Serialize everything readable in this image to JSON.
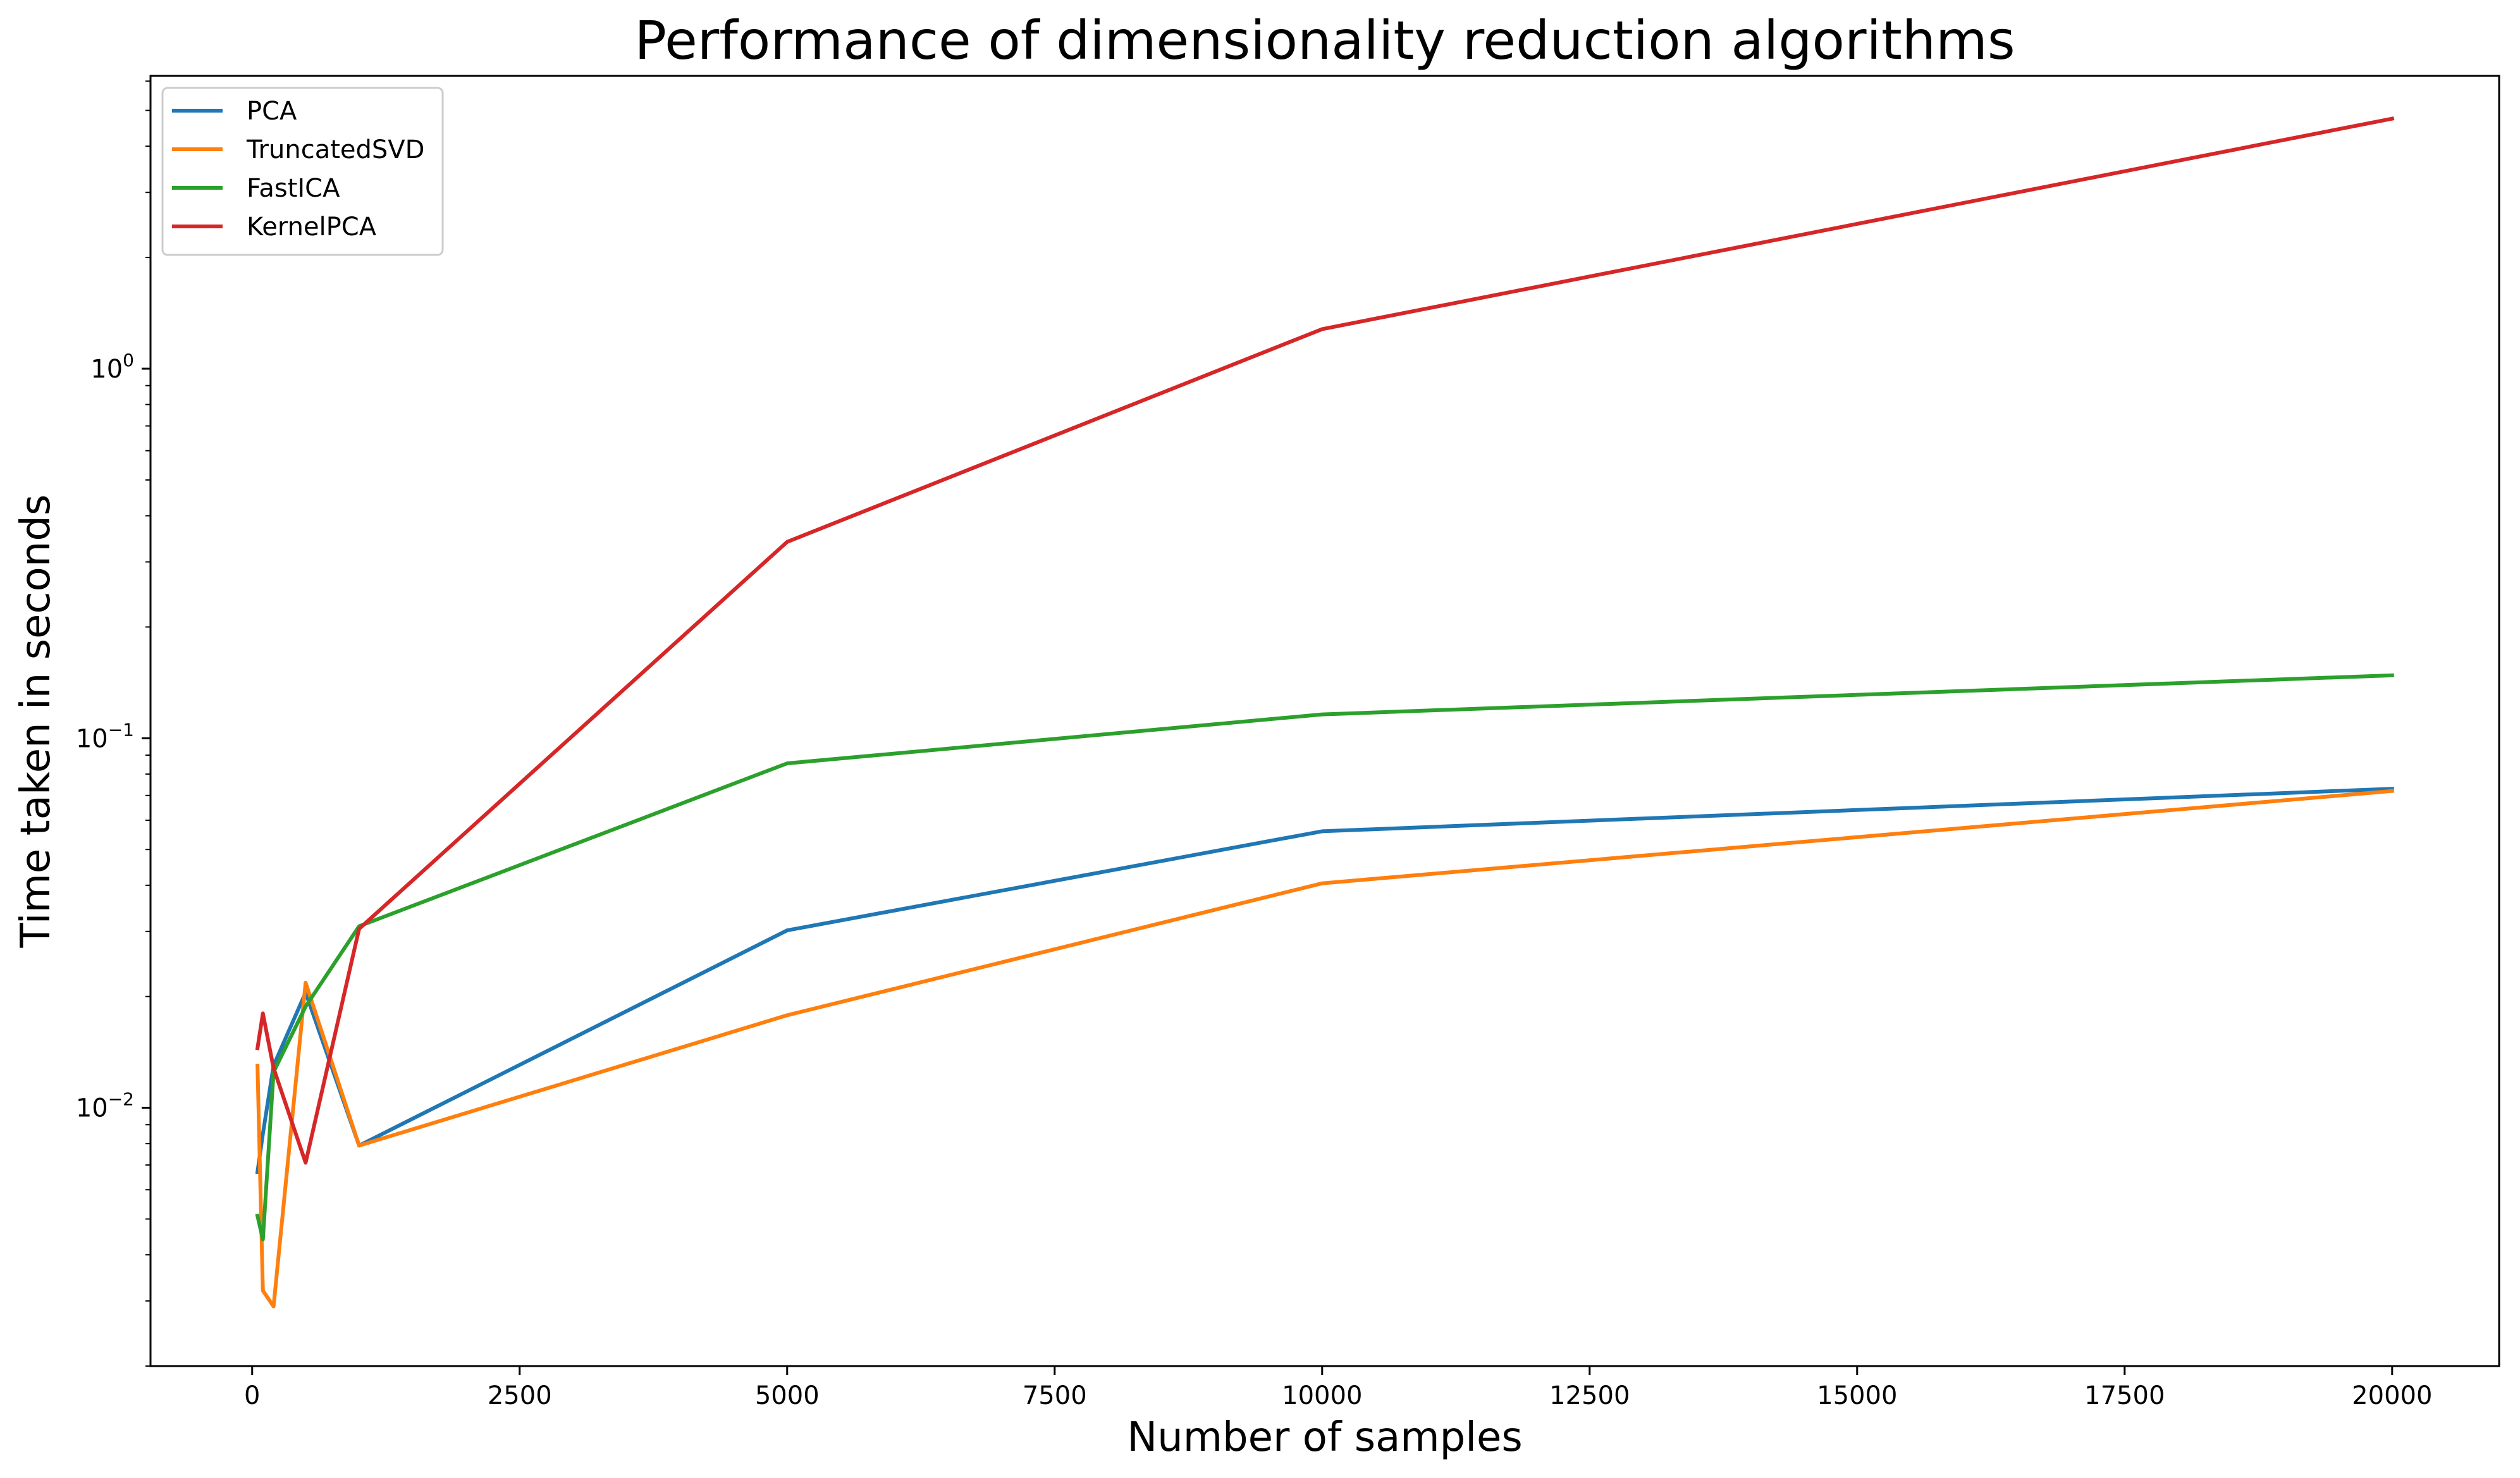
{
  "chart_data": {
    "type": "line",
    "title": "Performance of dimensionality reduction algorithms",
    "xlabel": "Number of samples",
    "ylabel": "Time taken in seconds",
    "yscale": "log",
    "xlim": [
      -950,
      21000
    ],
    "ylim": [
      0.002,
      6.2
    ],
    "grid": false,
    "legend_position": "upper-left",
    "x_ticks": [
      0,
      2500,
      5000,
      7500,
      10000,
      12500,
      15000,
      17500,
      20000
    ],
    "x_tick_labels": [
      "0",
      "2500",
      "5000",
      "7500",
      "10000",
      "12500",
      "15000",
      "17500",
      "20000"
    ],
    "y_ticks": [
      0.01,
      0.1,
      1
    ],
    "y_tick_labels": [
      {
        "base": "10",
        "exp": "−2"
      },
      {
        "base": "10",
        "exp": "−1"
      },
      {
        "base": "10",
        "exp": "0"
      }
    ],
    "series": [
      {
        "name": "PCA",
        "color": "#1f77b4",
        "x": [
          50,
          100,
          200,
          500,
          1000,
          5000,
          10000,
          20000
        ],
        "y": [
          0.0067,
          0.0085,
          0.013,
          0.0205,
          0.0079,
          0.0302,
          0.056,
          0.073
        ]
      },
      {
        "name": "TruncatedSVD",
        "color": "#ff7f0e",
        "x": [
          50,
          100,
          200,
          500,
          1000,
          5000,
          10000,
          20000
        ],
        "y": [
          0.013,
          0.0032,
          0.0029,
          0.0218,
          0.0079,
          0.0178,
          0.0405,
          0.072
        ]
      },
      {
        "name": "FastICA",
        "color": "#2ca02c",
        "x": [
          50,
          100,
          200,
          500,
          1000,
          5000,
          10000,
          20000
        ],
        "y": [
          0.0051,
          0.0044,
          0.0125,
          0.0188,
          0.031,
          0.0855,
          0.116,
          0.148
        ]
      },
      {
        "name": "KernelPCA",
        "color": "#d62728",
        "x": [
          50,
          100,
          200,
          500,
          1000,
          5000,
          10000,
          20000
        ],
        "y": [
          0.0145,
          0.018,
          0.0128,
          0.0071,
          0.0305,
          0.34,
          1.28,
          4.75
        ]
      }
    ]
  }
}
